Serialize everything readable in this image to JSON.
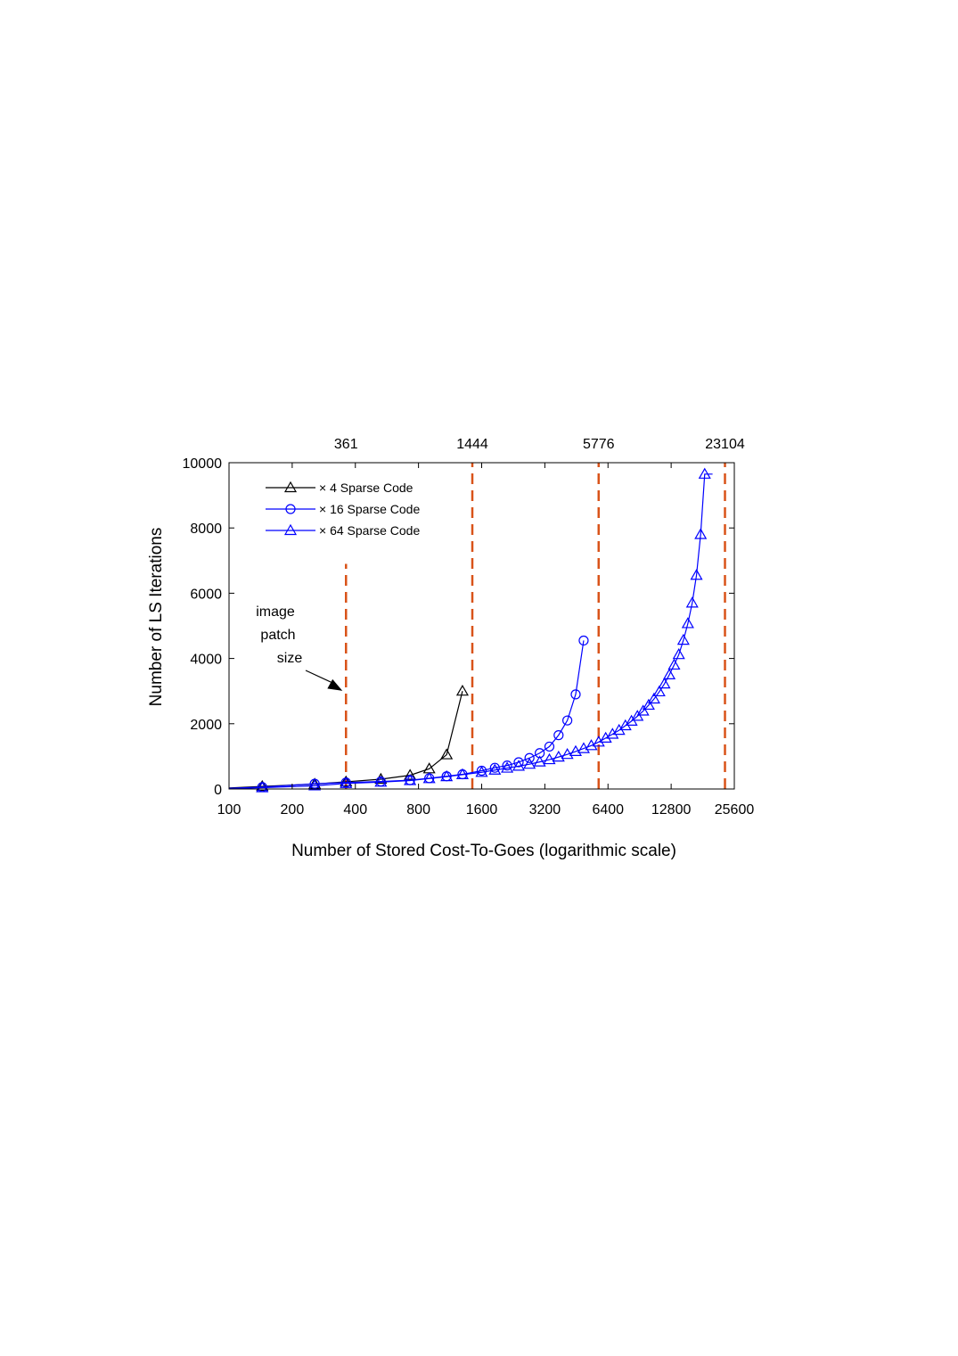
{
  "chart_data": {
    "type": "line",
    "xlabel": "Number of Stored Cost-To-Goes (logarithmic scale)",
    "ylabel": "Number of LS Iterations",
    "xscale": "log2",
    "xlim": [
      100,
      25600
    ],
    "ylim": [
      0,
      10000
    ],
    "xticks": [
      100,
      200,
      400,
      800,
      1600,
      3200,
      6400,
      12800,
      25600
    ],
    "xtick_labels": [
      "100",
      "200",
      "400",
      "800",
      "1600",
      "3200",
      "6400",
      "12800",
      "25600"
    ],
    "yticks": [
      0,
      2000,
      4000,
      6000,
      8000,
      10000
    ],
    "ytick_labels": [
      "0",
      "2000",
      "4000",
      "6000",
      "8000",
      "10000"
    ],
    "grid": false,
    "legend_position": "top-left",
    "series": [
      {
        "name": "× 4 Sparse Code",
        "color": "#000000",
        "marker": "triangle",
        "x": [
          100,
          144,
          256,
          361,
          529,
          729,
          900,
          1089,
          1296
        ],
        "y": [
          30,
          80,
          150,
          220,
          300,
          420,
          620,
          1050,
          3000
        ],
        "marked": [
          false,
          true,
          true,
          true,
          true,
          true,
          true,
          true,
          true
        ]
      },
      {
        "name": "× 16 Sparse Code",
        "color": "#0000ff",
        "marker": "circle",
        "x": [
          100,
          144,
          256,
          361,
          529,
          729,
          900,
          1089,
          1296,
          1600,
          1849,
          2116,
          2401,
          2704,
          3025,
          3364,
          3721,
          4096,
          4489,
          4900
        ],
        "y": [
          20,
          60,
          160,
          200,
          230,
          270,
          330,
          390,
          450,
          560,
          650,
          720,
          820,
          950,
          1100,
          1300,
          1650,
          2100,
          2900,
          4550
        ],
        "marked": [
          false,
          true,
          true,
          true,
          true,
          true,
          true,
          true,
          true,
          true,
          true,
          true,
          true,
          true,
          true,
          true,
          true,
          true,
          true,
          true
        ]
      },
      {
        "name": "× 64 Sparse Code",
        "color": "#0000ff",
        "marker": "triangle",
        "x": [
          100,
          144,
          256,
          361,
          529,
          729,
          900,
          1089,
          1296,
          1600,
          1849,
          2116,
          2401,
          2704,
          3025,
          3364,
          3721,
          4096,
          4489,
          4900,
          5329,
          5776,
          6241,
          6724,
          7225,
          7744,
          8281,
          8836,
          9409,
          10000,
          10609,
          11236,
          11881,
          12544,
          13225,
          13924,
          14641,
          15376,
          16129,
          16900,
          17689,
          18496,
          19321,
          20164
        ],
        "y": [
          10,
          40,
          100,
          170,
          210,
          260,
          320,
          380,
          440,
          510,
          580,
          640,
          700,
          760,
          830,
          900,
          980,
          1060,
          1150,
          1240,
          1330,
          1440,
          1560,
          1680,
          1800,
          1940,
          2080,
          2230,
          2390,
          2570,
          2760,
          2980,
          3220,
          3500,
          3800,
          4120,
          4560,
          5070,
          5700,
          6550,
          7800,
          9650,
          9650,
          9650
        ],
        "marked": [
          false,
          true,
          true,
          true,
          true,
          true,
          true,
          true,
          true,
          true,
          true,
          true,
          true,
          true,
          true,
          true,
          true,
          true,
          true,
          true,
          true,
          true,
          true,
          true,
          true,
          true,
          true,
          true,
          true,
          true,
          true,
          true,
          true,
          true,
          true,
          true,
          true,
          true,
          true,
          true,
          true,
          true,
          false,
          false
        ]
      }
    ],
    "vlines": [
      {
        "x": 361,
        "label": "361",
        "ymax": 6900
      },
      {
        "x": 1444,
        "label": "1444",
        "ymax": 10000
      },
      {
        "x": 5776,
        "label": "5776",
        "ymax": 10000
      },
      {
        "x": 23104,
        "label": "23104",
        "ymax": 10000
      }
    ],
    "vline_color": "#d95319",
    "annotation": {
      "lines": [
        "image",
        "patch",
        "size"
      ],
      "target_x": 361,
      "target_y": 2900
    }
  }
}
